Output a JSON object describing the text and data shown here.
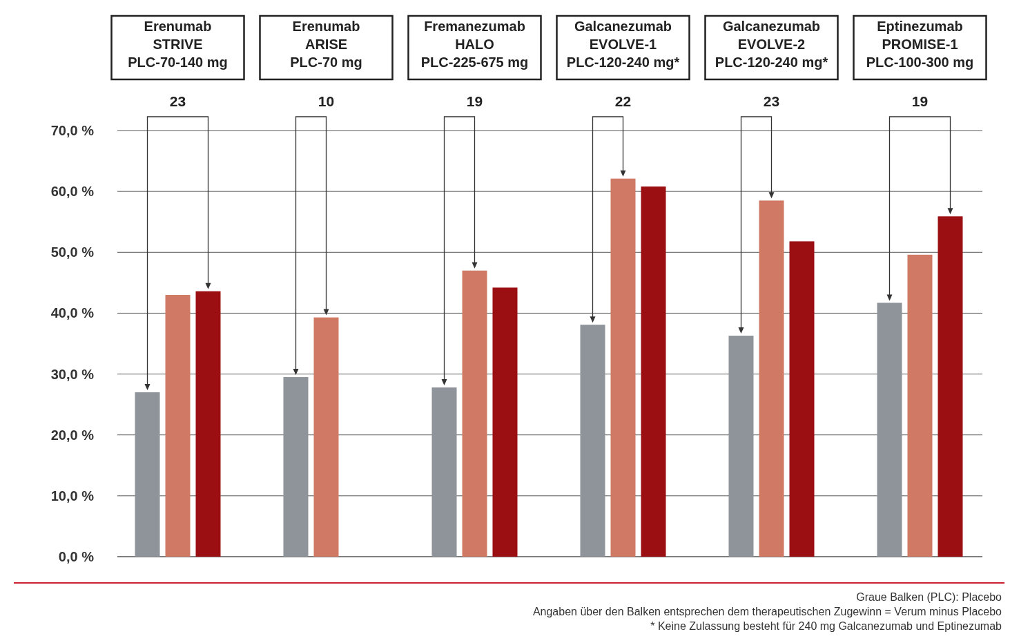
{
  "chart_data": {
    "type": "bar",
    "categories": [
      "Erenumab\nSTRIVE\nPLC-70-140 mg",
      "Erenumab\nARISE\nPLC-70 mg",
      "Fremanezumab\nHALO\nPLC-225-675 mg",
      "Galcanezumab\nEVOLVE-1\nPLC-120-240 mg*",
      "Galcanezumab\nEVOLVE-2\nPLC-120-240 mg*",
      "Eptinezumab\nPROMISE-1\nPLC-100-300 mg"
    ],
    "series": [
      {
        "color": "#8e9499",
        "values": [
          27.0,
          29.5,
          27.8,
          38.1,
          36.3,
          41.7
        ]
      },
      {
        "color": "#d07a65",
        "values": [
          43.0,
          39.3,
          47.0,
          62.1,
          58.5,
          49.6
        ]
      },
      {
        "color": "#9b0f12",
        "values": [
          43.6,
          null,
          44.2,
          60.8,
          51.8,
          55.9
        ]
      }
    ],
    "ylim": [
      0,
      70
    ],
    "yticks": [
      {
        "value": 0,
        "label": "0,0 %"
      },
      {
        "value": 10,
        "label": "10,0 %"
      },
      {
        "value": 20,
        "label": "20,0 %"
      },
      {
        "value": 30,
        "label": "30,0 %"
      },
      {
        "value": 40,
        "label": "40,0 %"
      },
      {
        "value": 50,
        "label": "50,0 %"
      },
      {
        "value": 60,
        "label": "60,0 %"
      },
      {
        "value": 70,
        "label": "70,0 %"
      }
    ],
    "grid": "y",
    "annotations": [
      "23",
      "10",
      "19",
      "22",
      "23",
      "19",
      "Graue Balken (PLC): Placebo",
      "Angaben über den Balken entsprechen dem therapeutischen Zugewinn = Verum minus Placebo",
      "* Keine Zulassung besteht für 240 mg Galcanezumab und Eptinezumab"
    ]
  }
}
